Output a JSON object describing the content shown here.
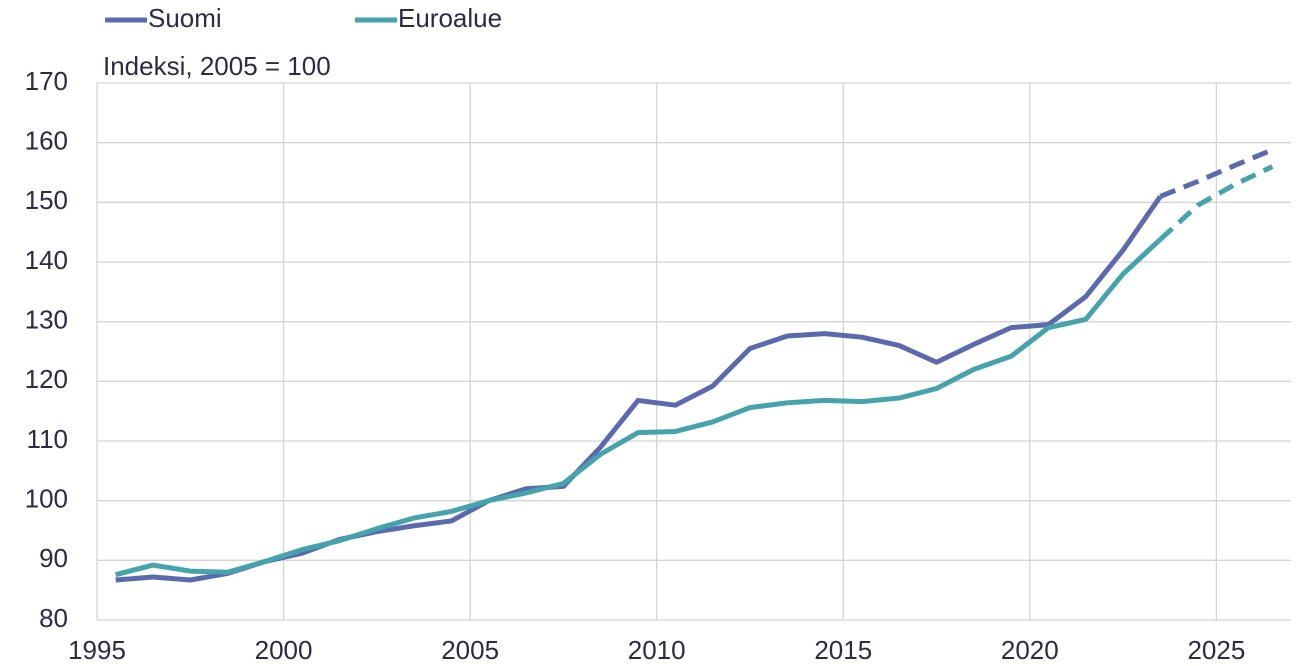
{
  "chart_data": {
    "type": "line",
    "subtitle": "Indeksi, 2005 = 100",
    "x": [
      1995.5,
      1996.5,
      1997.5,
      1998.5,
      1999.5,
      2000.5,
      2001.5,
      2002.5,
      2003.5,
      2004.5,
      2005.5,
      2006.5,
      2007.5,
      2008.5,
      2009.5,
      2010.5,
      2011.5,
      2012.5,
      2013.5,
      2014.5,
      2015.5,
      2016.5,
      2017.5,
      2018.5,
      2019.5,
      2020.5,
      2021.5,
      2022.5,
      2023.5,
      2024.5,
      2025.5,
      2026.5
    ],
    "series": [
      {
        "name": "Suomi",
        "color": "#5b6aae",
        "values": [
          86.7,
          87.2,
          86.7,
          87.8,
          89.8,
          91.2,
          93.5,
          94.8,
          95.8,
          96.6,
          100,
          102,
          102.4,
          109,
          116.8,
          116,
          119.2,
          125.5,
          127.6,
          128,
          127.4,
          126,
          123.2,
          126.2,
          129,
          129.5,
          134.2,
          142,
          151,
          153.5,
          156.2,
          158.8
        ]
      },
      {
        "name": "Euroalue",
        "color": "#45a3ab",
        "values": [
          87.6,
          89.2,
          88.2,
          88,
          89.8,
          91.8,
          93.3,
          95.3,
          97.1,
          98.2,
          100,
          101.3,
          102.9,
          107.8,
          111.4,
          111.6,
          113.2,
          115.6,
          116.4,
          116.8,
          116.6,
          117.2,
          118.8,
          122,
          124.2,
          129,
          130.4,
          138,
          143.8,
          149.5,
          153,
          156
        ]
      }
    ],
    "dashed_from": 2023.5,
    "xlim": [
      1995,
      2027
    ],
    "xticks": [
      1995,
      2000,
      2005,
      2010,
      2015,
      2020,
      2025
    ],
    "ylim": [
      80,
      170
    ],
    "yticks": [
      80,
      90,
      100,
      110,
      120,
      130,
      140,
      150,
      160,
      170
    ],
    "grid": true
  }
}
